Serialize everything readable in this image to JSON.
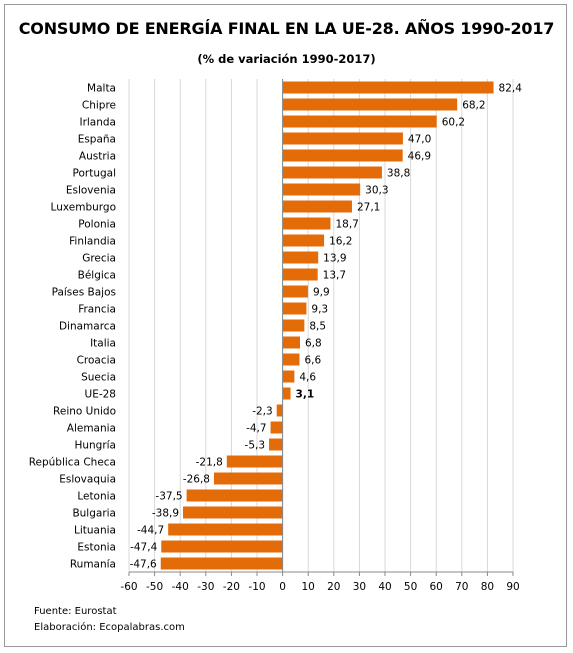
{
  "title": "CONSUMO DE ENERGÍA FINAL EN LA UE-28. AÑOS 1990-2017",
  "subtitle": "(% de variación 1990-2017)",
  "footer": {
    "source": "Fuente: Eurostat",
    "credit": "Elaboración: Ecopalabras.com"
  },
  "colors": {
    "bar": "#E36C09",
    "gridline": "#d9d9d9",
    "axis": "#888888"
  },
  "chart_data": {
    "type": "bar",
    "orientation": "horizontal",
    "categories": [
      "Malta",
      "Chipre",
      "Irlanda",
      "España",
      "Austria",
      "Portugal",
      "Eslovenia",
      "Luxemburgo",
      "Polonia",
      "Finlandia",
      "Grecia",
      "Bélgica",
      "Países Bajos",
      "Francia",
      "Dinamarca",
      "Italia",
      "Croacia",
      "Suecia",
      "UE-28",
      "Reino Unido",
      "Alemania",
      "Hungría",
      "República Checa",
      "Eslovaquia",
      "Letonia",
      "Bulgaria",
      "Lituania",
      "Estonia",
      "Rumanía"
    ],
    "values": [
      82.4,
      68.2,
      60.2,
      47.0,
      46.9,
      38.8,
      30.3,
      27.1,
      18.7,
      16.2,
      13.9,
      13.7,
      9.9,
      9.3,
      8.5,
      6.8,
      6.6,
      4.6,
      3.1,
      -2.3,
      -4.7,
      -5.3,
      -21.8,
      -26.8,
      -37.5,
      -38.9,
      -44.7,
      -47.4,
      -47.6
    ],
    "value_labels": [
      "82,4",
      "68,2",
      "60,2",
      "47,0",
      "46,9",
      "38,8",
      "30,3",
      "27,1",
      "18,7",
      "16,2",
      "13,9",
      "13,7",
      "9,9",
      "9,3",
      "8,5",
      "6,8",
      "6,6",
      "4,6",
      "3,1",
      "-2,3",
      "-4,7",
      "-5,3",
      "-21,8",
      "-26,8",
      "-37,5",
      "-38,9",
      "-44,7",
      "-47,4",
      "-47,6"
    ],
    "highlight": "UE-28",
    "xlim": [
      -60,
      90
    ],
    "xticks": [
      -60,
      -50,
      -40,
      -30,
      -20,
      -10,
      0,
      10,
      20,
      30,
      40,
      50,
      60,
      70,
      80,
      90
    ],
    "grid": "vertical",
    "xlabel": "",
    "ylabel": ""
  }
}
